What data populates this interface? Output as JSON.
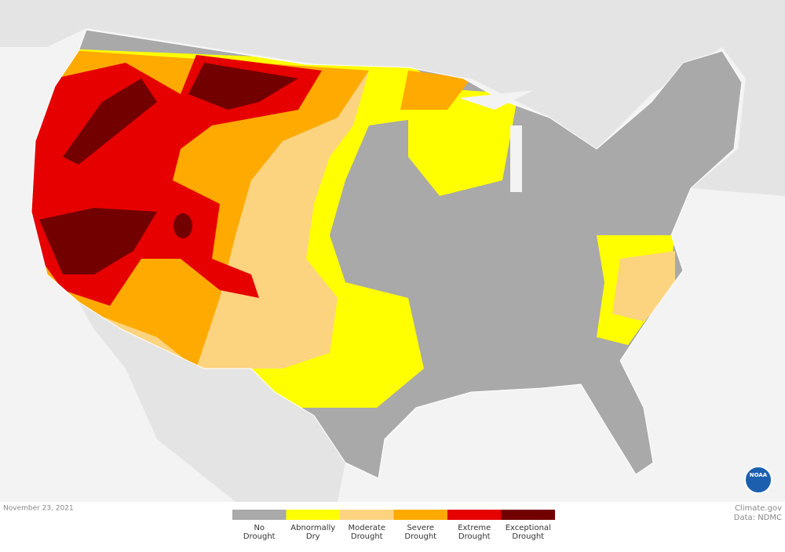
{
  "date": "November 23, 2021",
  "credit": {
    "site": "Climate.gov",
    "source": "Data: NDMC"
  },
  "logo": "NOAA",
  "legend": {
    "items": [
      {
        "label": [
          "No",
          "Drought"
        ],
        "color": "#a9a9a9"
      },
      {
        "label": [
          "Abnormally",
          "Dry"
        ],
        "color": "#ffff00"
      },
      {
        "label": [
          "Moderate",
          "Drought"
        ],
        "color": "#fcd37f"
      },
      {
        "label": [
          "Severe",
          "Drought"
        ],
        "color": "#ffaa00"
      },
      {
        "label": [
          "Extreme",
          "Drought"
        ],
        "color": "#e60000"
      },
      {
        "label": [
          "Exceptional",
          "Drought"
        ],
        "color": "#730000"
      }
    ]
  }
}
